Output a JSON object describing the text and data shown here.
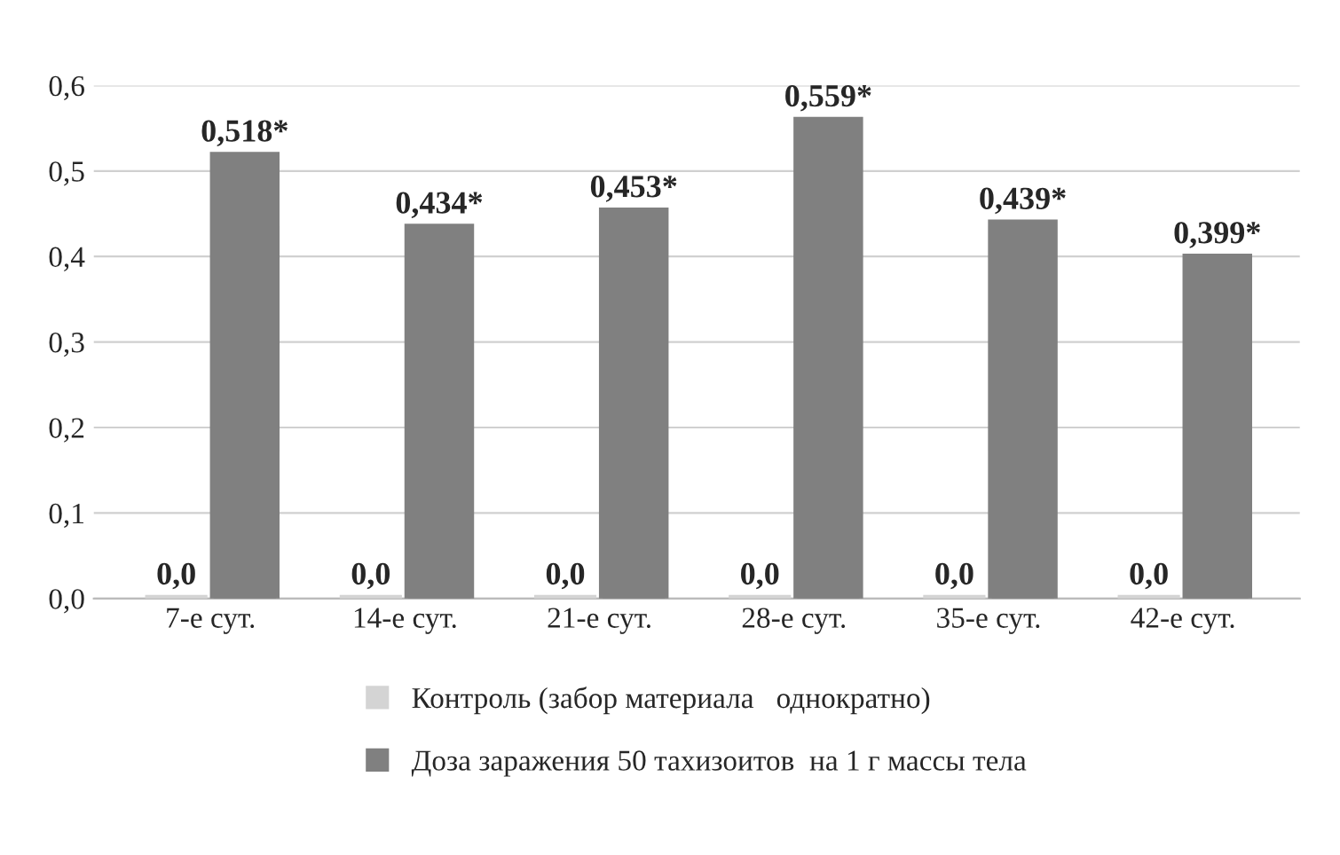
{
  "chart_data": {
    "type": "bar",
    "categories": [
      "7-е сут.",
      "14-е сут.",
      "21-е сут.",
      "28-е сут.",
      "35-е сут.",
      "42-е сут."
    ],
    "series": [
      {
        "name": "Контроль (забор материала   однократно)",
        "color": "#d4d4d4",
        "values": [
          0.0,
          0.0,
          0.0,
          0.0,
          0.0,
          0.0
        ],
        "value_labels": [
          "0,0",
          "0,0",
          "0,0",
          "0,0",
          "0,0",
          "0,0"
        ]
      },
      {
        "name": "Доза заражения 50 тахизоитов  на 1 г массы тела",
        "color": "#808080",
        "values": [
          0.518,
          0.434,
          0.453,
          0.559,
          0.439,
          0.399
        ],
        "value_labels": [
          "0,518*",
          "0,434*",
          "0,453*",
          "0,559*",
          "0,439*",
          "0,399*"
        ]
      }
    ],
    "ylim": [
      0,
      0.6
    ],
    "yticks": [
      {
        "value": 0,
        "label": "0,0"
      },
      {
        "value": 0.1,
        "label": "0,1"
      },
      {
        "value": 0.2,
        "label": "0,2"
      },
      {
        "value": 0.3,
        "label": "0,3"
      },
      {
        "value": 0.4,
        "label": "0,4"
      },
      {
        "value": 0.5,
        "label": "0,5"
      },
      {
        "value": 0.6,
        "label": "0,6"
      }
    ],
    "grid": "y",
    "legend": "bottom"
  }
}
